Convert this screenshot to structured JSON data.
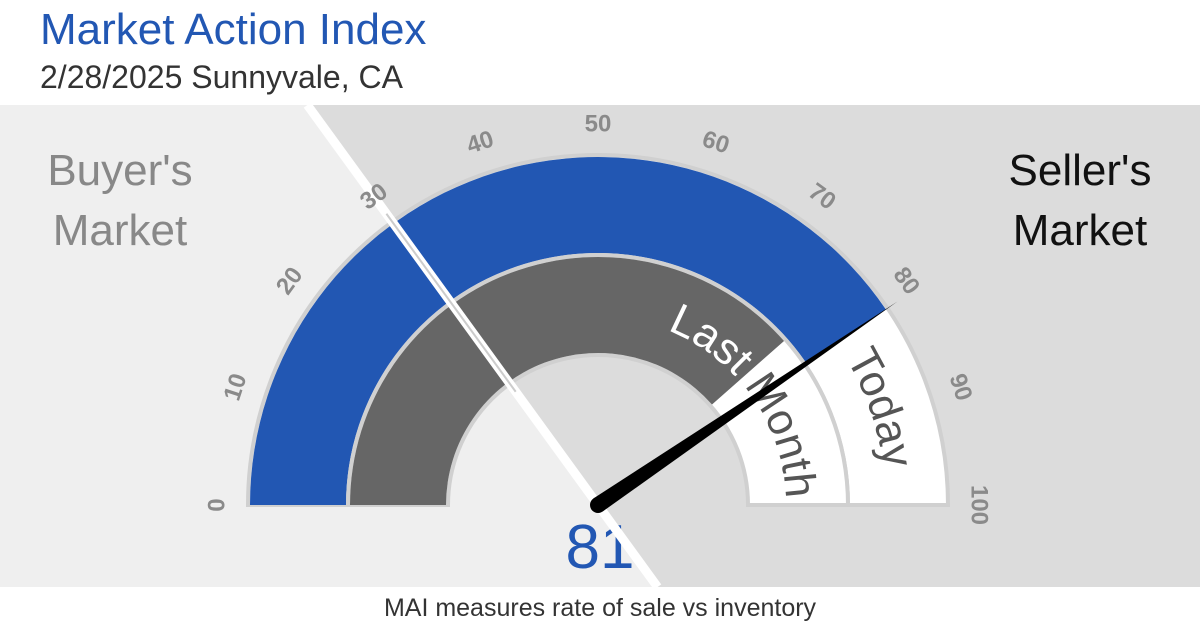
{
  "chart_data": {
    "type": "gauge",
    "title": "Market Action Index",
    "subtitle": "2/28/2025 Sunnyvale, CA",
    "lim": [
      0,
      100
    ],
    "ticks": [
      0,
      10,
      20,
      30,
      40,
      50,
      60,
      70,
      80,
      90,
      100
    ],
    "split": 30,
    "left_label": [
      "Buyer's",
      "Market"
    ],
    "right_label": [
      "Seller's",
      "Market"
    ],
    "series": [
      {
        "name": "Today",
        "color": "#2257b3",
        "values": [
          81
        ]
      },
      {
        "name": "Last Month",
        "color": "#666666",
        "values": [
          77
        ]
      }
    ],
    "caption": "MAI measures rate of sale vs inventory"
  }
}
